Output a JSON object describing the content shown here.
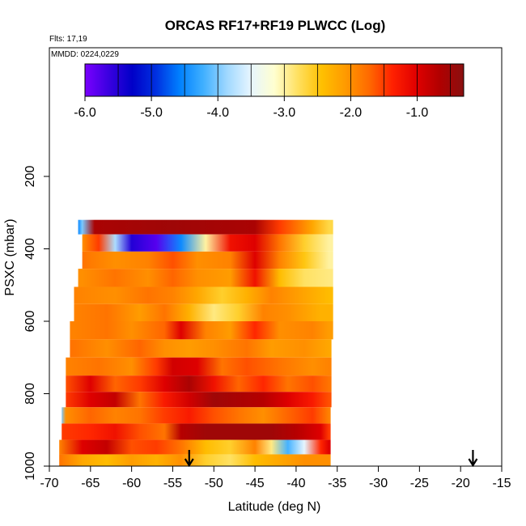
{
  "chart_data": {
    "type": "heatmap",
    "title": "ORCAS RF17+RF19 PLWCC (Log)",
    "flights_label": "Flts: 17,19",
    "dates_label": "MMDD: 0224,0229",
    "xlabel": "Latitude (deg N)",
    "ylabel": "PSXC (mbar)",
    "xlim": [
      -70,
      -15
    ],
    "ylim": [
      1000,
      50
    ],
    "x_ticks": [
      "-70",
      "-65",
      "-60",
      "-55",
      "-50",
      "-45",
      "-40",
      "-35",
      "-30",
      "-25",
      "-20",
      "-15"
    ],
    "y_ticks": [
      "200",
      "400",
      "600",
      "800",
      "1000"
    ],
    "colorbar": {
      "min": -6.0,
      "max": -0.3,
      "tick_labels": [
        "-6.0",
        "-5.0",
        "-4.0",
        "-3.0",
        "-2.0",
        "-1.0"
      ],
      "colors": [
        "#7a00ff",
        "#3a00e0",
        "#0000c8",
        "#0030e0",
        "#0080ff",
        "#40b0ff",
        "#a0d8ff",
        "#e6f5ff",
        "#ffffd0",
        "#ffe060",
        "#ffc000",
        "#ff9a00",
        "#ff6a00",
        "#ff2000",
        "#e00000",
        "#b00000",
        "#8a1010"
      ]
    },
    "cells": [
      {
        "p": 335,
        "x_start": -66.5,
        "x_end": -35.5,
        "profile": [
          [
            -66.5,
            -4.5
          ],
          [
            -66.0,
            -4.0
          ],
          [
            -64.5,
            -0.6
          ],
          [
            -55,
            -0.5
          ],
          [
            -45,
            -0.6
          ],
          [
            -42,
            -1.5
          ],
          [
            -38,
            -2.2
          ],
          [
            -36,
            -2.7
          ]
        ]
      },
      {
        "p": 385,
        "x_start": -66.0,
        "x_end": -35.5,
        "profile": [
          [
            -66,
            -2.0
          ],
          [
            -64,
            -1.5
          ],
          [
            -62,
            -3.8
          ],
          [
            -60,
            -5.5
          ],
          [
            -57,
            -5.8
          ],
          [
            -54,
            -4.5
          ],
          [
            -51,
            -3.0
          ],
          [
            -48,
            -1.2
          ],
          [
            -45,
            -1.0
          ],
          [
            -42,
            -1.8
          ],
          [
            -39,
            -2.6
          ],
          [
            -36,
            -3.0
          ]
        ]
      },
      {
        "p": 430,
        "x_start": -66.0,
        "x_end": -35.5,
        "profile": [
          [
            -66,
            -1.8
          ],
          [
            -62,
            -2.0
          ],
          [
            -58,
            -1.9
          ],
          [
            -55,
            -1.6
          ],
          [
            -52,
            -2.0
          ],
          [
            -48,
            -1.9
          ],
          [
            -45,
            -1.0
          ],
          [
            -42,
            -1.9
          ],
          [
            -39,
            -2.5
          ],
          [
            -36,
            -3.0
          ]
        ]
      },
      {
        "p": 480,
        "x_start": -66.5,
        "x_end": -35.5,
        "profile": [
          [
            -66,
            -2.0
          ],
          [
            -62,
            -1.8
          ],
          [
            -58,
            -2.0
          ],
          [
            -55,
            -1.7
          ],
          [
            -52,
            -2.0
          ],
          [
            -48,
            -2.1
          ],
          [
            -45,
            -1.2
          ],
          [
            -42,
            -2.4
          ],
          [
            -39,
            -2.8
          ],
          [
            -36,
            -2.9
          ]
        ]
      },
      {
        "p": 530,
        "x_start": -67.0,
        "x_end": -35.5,
        "profile": [
          [
            -67,
            -1.9
          ],
          [
            -62,
            -2.0
          ],
          [
            -58,
            -1.8
          ],
          [
            -55,
            -1.9
          ],
          [
            -52,
            -2.2
          ],
          [
            -49,
            -2.6
          ],
          [
            -46,
            -2.3
          ],
          [
            -43,
            -1.9
          ],
          [
            -40,
            -2.1
          ],
          [
            -36,
            -2.4
          ]
        ]
      },
      {
        "p": 575,
        "x_start": -67.0,
        "x_end": -35.5,
        "profile": [
          [
            -67,
            -1.9
          ],
          [
            -63,
            -1.8
          ],
          [
            -59,
            -2.1
          ],
          [
            -56,
            -1.8
          ],
          [
            -53,
            -2.3
          ],
          [
            -50,
            -2.9
          ],
          [
            -47,
            -2.6
          ],
          [
            -44,
            -1.9
          ],
          [
            -41,
            -2.0
          ],
          [
            -37,
            -2.3
          ]
        ]
      },
      {
        "p": 625,
        "x_start": -67.5,
        "x_end": -35.5,
        "profile": [
          [
            -67,
            -1.9
          ],
          [
            -63,
            -1.8
          ],
          [
            -60,
            -2.0
          ],
          [
            -56,
            -1.7
          ],
          [
            -54,
            -1.0
          ],
          [
            -51,
            -1.9
          ],
          [
            -48,
            -2.1
          ],
          [
            -45,
            -1.4
          ],
          [
            -42,
            -2.0
          ],
          [
            -38,
            -1.9
          ],
          [
            -36,
            -2.1
          ]
        ]
      },
      {
        "p": 675,
        "x_start": -67.5,
        "x_end": -35.7,
        "profile": [
          [
            -67,
            -1.8
          ],
          [
            -63,
            -2.0
          ],
          [
            -59,
            -1.7
          ],
          [
            -56,
            -2.0
          ],
          [
            -53,
            -2.1
          ],
          [
            -50,
            -2.0
          ],
          [
            -46,
            -1.8
          ],
          [
            -43,
            -2.1
          ],
          [
            -39,
            -2.0
          ],
          [
            -36,
            -2.2
          ]
        ]
      },
      {
        "p": 725,
        "x_start": -68.0,
        "x_end": -35.7,
        "profile": [
          [
            -68,
            -1.9
          ],
          [
            -64,
            -1.8
          ],
          [
            -60,
            -2.0
          ],
          [
            -57,
            -1.5
          ],
          [
            -55,
            -0.9
          ],
          [
            -52,
            -1.0
          ],
          [
            -49,
            -1.8
          ],
          [
            -46,
            -1.6
          ],
          [
            -42,
            -1.8
          ],
          [
            -38,
            -2.0
          ],
          [
            -36,
            -1.9
          ]
        ]
      },
      {
        "p": 775,
        "x_start": -68.0,
        "x_end": -35.7,
        "profile": [
          [
            -68,
            -1.6
          ],
          [
            -65,
            -1.0
          ],
          [
            -62,
            -1.7
          ],
          [
            -59,
            -1.5
          ],
          [
            -56,
            -1.0
          ],
          [
            -53,
            -0.6
          ],
          [
            -50,
            -1.2
          ],
          [
            -47,
            -1.7
          ],
          [
            -44,
            -1.4
          ],
          [
            -41,
            -1.8
          ],
          [
            -38,
            -1.6
          ],
          [
            -36,
            -1.8
          ]
        ]
      },
      {
        "p": 815,
        "x_start": -68.0,
        "x_end": -35.7,
        "profile": [
          [
            -68,
            -1.5
          ],
          [
            -65,
            -1.0
          ],
          [
            -62,
            -0.8
          ],
          [
            -59,
            -1.8
          ],
          [
            -56,
            -1.3
          ],
          [
            -53,
            -0.9
          ],
          [
            -50,
            -0.5
          ],
          [
            -47,
            -0.6
          ],
          [
            -44,
            -0.7
          ],
          [
            -41,
            -1.0
          ],
          [
            -38,
            -1.3
          ],
          [
            -36,
            -1.6
          ]
        ]
      },
      {
        "p": 860,
        "x_start": -68.5,
        "x_end": -35.8,
        "profile": [
          [
            -68.5,
            -4.0
          ],
          [
            -68,
            -2.0
          ],
          [
            -65,
            -1.7
          ],
          [
            -62,
            -1.9
          ],
          [
            -59,
            -1.8
          ],
          [
            -56,
            -1.5
          ],
          [
            -53,
            -1.3
          ],
          [
            -50,
            -1.6
          ],
          [
            -47,
            -1.8
          ],
          [
            -44,
            -2.0
          ],
          [
            -41,
            -1.7
          ],
          [
            -38,
            -1.5
          ],
          [
            -36,
            -1.9
          ]
        ]
      },
      {
        "p": 905,
        "x_start": -68.5,
        "x_end": -35.8,
        "profile": [
          [
            -68.5,
            -1.5
          ],
          [
            -65,
            -1.4
          ],
          [
            -62,
            -1.2
          ],
          [
            -59,
            -1.6
          ],
          [
            -56,
            -1.8
          ],
          [
            -54,
            -0.7
          ],
          [
            -51,
            -0.5
          ],
          [
            -47,
            -0.5
          ],
          [
            -43,
            -0.5
          ],
          [
            -40,
            -0.7
          ],
          [
            -37,
            -1.0
          ],
          [
            -36,
            -1.5
          ]
        ]
      },
      {
        "p": 950,
        "x_start": -68.8,
        "x_end": -35.8,
        "profile": [
          [
            -68.8,
            -1.9
          ],
          [
            -66,
            -1.0
          ],
          [
            -63,
            -0.8
          ],
          [
            -60,
            -1.6
          ],
          [
            -57,
            -1.5
          ],
          [
            -54,
            -1.8
          ],
          [
            -51,
            -2.4
          ],
          [
            -48,
            -2.6
          ],
          [
            -45,
            -1.9
          ],
          [
            -43,
            -2.9
          ],
          [
            -41,
            -4.2
          ],
          [
            -39,
            -3.5
          ],
          [
            -37,
            -1.4
          ],
          [
            -36,
            -1.0
          ]
        ]
      },
      {
        "p": 985,
        "x_start": -68.8,
        "x_end": -35.8,
        "profile": [
          [
            -68.8,
            -1.8
          ],
          [
            -66,
            -2.2
          ],
          [
            -63,
            -2.4
          ],
          [
            -60,
            -2.1
          ],
          [
            -57,
            -2.3
          ],
          [
            -54,
            -2.0
          ],
          [
            -51,
            -2.6
          ],
          [
            -48,
            -2.8
          ],
          [
            -45,
            -2.4
          ],
          [
            -42,
            -2.2
          ],
          [
            -39,
            -2.0
          ],
          [
            -36,
            -2.0
          ]
        ]
      }
    ],
    "flight_markers": [
      -53,
      -18.5
    ]
  }
}
